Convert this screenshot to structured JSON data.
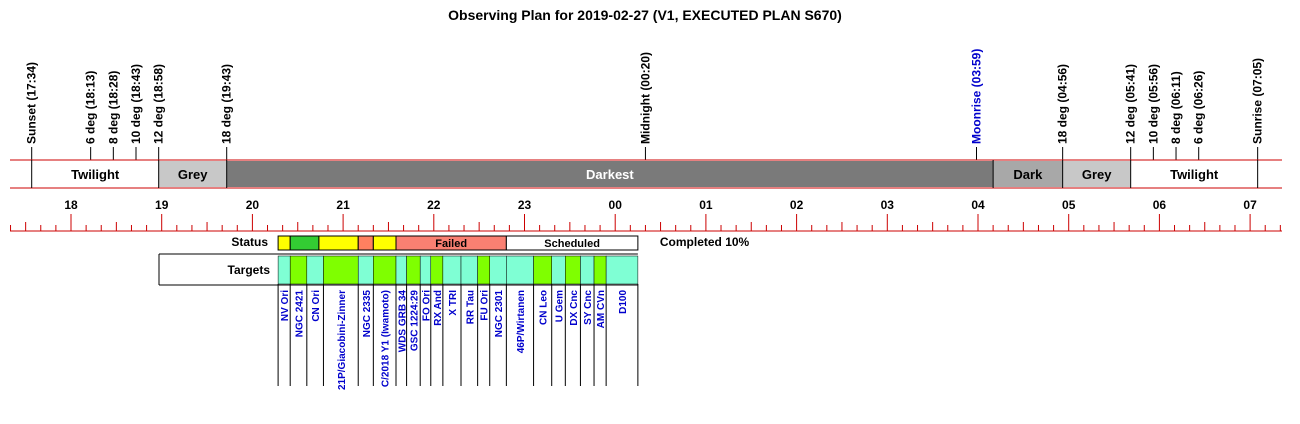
{
  "title": "Observing Plan for 2019-02-27 (V1, EXECUTED PLAN S670)",
  "colors": {
    "grid": "#cc0000",
    "twilight": "#ffffff",
    "grey": "#c8c8c8",
    "dark": "#a8a8a8",
    "darkest": "#7a7a7a",
    "moonrise": "#0000cc",
    "status_observed": "#ffff00",
    "status_done": "#33cc33",
    "status_partial": "#ff8060",
    "status_failed": "#fa8072",
    "status_scheduled": "#ffffff",
    "target_a": "#7fff00",
    "target_b": "#7fffd4",
    "target_text": "#0000cc"
  },
  "events": [
    {
      "label": "Sunset (17:34)",
      "time": "17:34",
      "color": "#000000"
    },
    {
      "label": "6 deg (18:13)",
      "time": "18:13",
      "color": "#000000"
    },
    {
      "label": "8 deg (18:28)",
      "time": "18:28",
      "color": "#000000"
    },
    {
      "label": "10 deg (18:43)",
      "time": "18:43",
      "color": "#000000"
    },
    {
      "label": "12 deg (18:58)",
      "time": "18:58",
      "color": "#000000"
    },
    {
      "label": "18 deg (19:43)",
      "time": "19:43",
      "color": "#000000"
    },
    {
      "label": "Midnight (00:20)",
      "time": "00:20",
      "color": "#000000"
    },
    {
      "label": "Moonrise (03:59)",
      "time": "03:59",
      "color": "#0000cc"
    },
    {
      "label": "18 deg (04:56)",
      "time": "04:56",
      "color": "#000000"
    },
    {
      "label": "12 deg (05:41)",
      "time": "05:41",
      "color": "#000000"
    },
    {
      "label": "10 deg (05:56)",
      "time": "05:56",
      "color": "#000000"
    },
    {
      "label": "8 deg (06:11)",
      "time": "06:11",
      "color": "#000000"
    },
    {
      "label": "6 deg (06:26)",
      "time": "06:26",
      "color": "#000000"
    },
    {
      "label": "Sunrise (07:05)",
      "time": "07:05",
      "color": "#000000"
    }
  ],
  "phases": [
    {
      "label": "Twilight",
      "start": "17:34",
      "end": "18:58",
      "color": "#ffffff",
      "text_color": "#000000"
    },
    {
      "label": "Grey",
      "start": "18:58",
      "end": "19:43",
      "color": "#c8c8c8",
      "text_color": "#000000"
    },
    {
      "label": "Darkest",
      "start": "19:43",
      "end": "04:10",
      "color": "#7a7a7a",
      "text_color": "#ffffff"
    },
    {
      "label": "Dark",
      "start": "04:10",
      "end": "04:56",
      "color": "#a8a8a8",
      "text_color": "#000000"
    },
    {
      "label": "Grey",
      "start": "04:56",
      "end": "05:41",
      "color": "#c8c8c8",
      "text_color": "#000000"
    },
    {
      "label": "Twilight",
      "start": "05:41",
      "end": "07:05",
      "color": "#ffffff",
      "text_color": "#000000"
    }
  ],
  "hours": [
    "18",
    "19",
    "20",
    "21",
    "22",
    "23",
    "00",
    "01",
    "02",
    "03",
    "04",
    "05",
    "06",
    "07"
  ],
  "axis": {
    "start": "17:10",
    "end": "07:20"
  },
  "status": {
    "label": "Status",
    "summary": "Completed 10%",
    "segments": [
      {
        "start": "20:17",
        "end": "20:25",
        "color": "#ffff00",
        "label": ""
      },
      {
        "start": "20:25",
        "end": "20:44",
        "color": "#33cc33",
        "label": ""
      },
      {
        "start": "20:44",
        "end": "21:10",
        "color": "#ffff00",
        "label": ""
      },
      {
        "start": "21:10",
        "end": "21:20",
        "color": "#ff8060",
        "label": ""
      },
      {
        "start": "21:20",
        "end": "21:35",
        "color": "#ffff00",
        "label": ""
      },
      {
        "start": "21:35",
        "end": "22:48",
        "color": "#fa8072",
        "label": "Failed"
      },
      {
        "start": "22:48",
        "end": "00:15",
        "color": "#ffffff",
        "label": "Scheduled"
      }
    ]
  },
  "targets": {
    "label": "Targets",
    "items": [
      {
        "name": "NV Ori",
        "start": "20:17",
        "end": "20:25",
        "color": "#7fffd4"
      },
      {
        "name": "NGC 2421",
        "start": "20:25",
        "end": "20:36",
        "color": "#7fff00"
      },
      {
        "name": "CN Ori",
        "start": "20:36",
        "end": "20:47",
        "color": "#7fffd4"
      },
      {
        "name": "21P/Giacobini-Zinner",
        "start": "20:47",
        "end": "21:10",
        "color": "#7fff00"
      },
      {
        "name": "NGC 2335",
        "start": "21:10",
        "end": "21:20",
        "color": "#7fffd4"
      },
      {
        "name": "C/2018 Y1 (Iwamoto)",
        "start": "21:20",
        "end": "21:35",
        "color": "#7fff00"
      },
      {
        "name": "WDS GRB 34",
        "start": "21:35",
        "end": "21:42",
        "color": "#7fffd4"
      },
      {
        "name": "GSC 1224:29",
        "start": "21:42",
        "end": "21:51",
        "color": "#7fff00"
      },
      {
        "name": "FO Ori",
        "start": "21:51",
        "end": "21:58",
        "color": "#7fffd4"
      },
      {
        "name": "RX And",
        "start": "21:58",
        "end": "22:06",
        "color": "#7fff00"
      },
      {
        "name": "X TRI",
        "start": "22:06",
        "end": "22:18",
        "color": "#7fffd4"
      },
      {
        "name": "RR Tau",
        "start": "22:18",
        "end": "22:29",
        "color": "#7fffd4"
      },
      {
        "name": "FU Ori",
        "start": "22:29",
        "end": "22:37",
        "color": "#7fff00"
      },
      {
        "name": "NGC 2301",
        "start": "22:37",
        "end": "22:48",
        "color": "#7fffd4"
      },
      {
        "name": "46P/Wirtanen",
        "start": "22:48",
        "end": "23:06",
        "color": "#7fffd4"
      },
      {
        "name": "CN Leo",
        "start": "23:06",
        "end": "23:18",
        "color": "#7fff00"
      },
      {
        "name": "U Gem",
        "start": "23:18",
        "end": "23:27",
        "color": "#7fffd4"
      },
      {
        "name": "DX Cnc",
        "start": "23:27",
        "end": "23:37",
        "color": "#7fff00"
      },
      {
        "name": "SY Cnc",
        "start": "23:37",
        "end": "23:46",
        "color": "#7fffd4"
      },
      {
        "name": "AM CVn",
        "start": "23:46",
        "end": "23:54",
        "color": "#7fff00"
      },
      {
        "name": "D100",
        "start": "23:54",
        "end": "00:15",
        "color": "#7fffd4"
      }
    ]
  }
}
